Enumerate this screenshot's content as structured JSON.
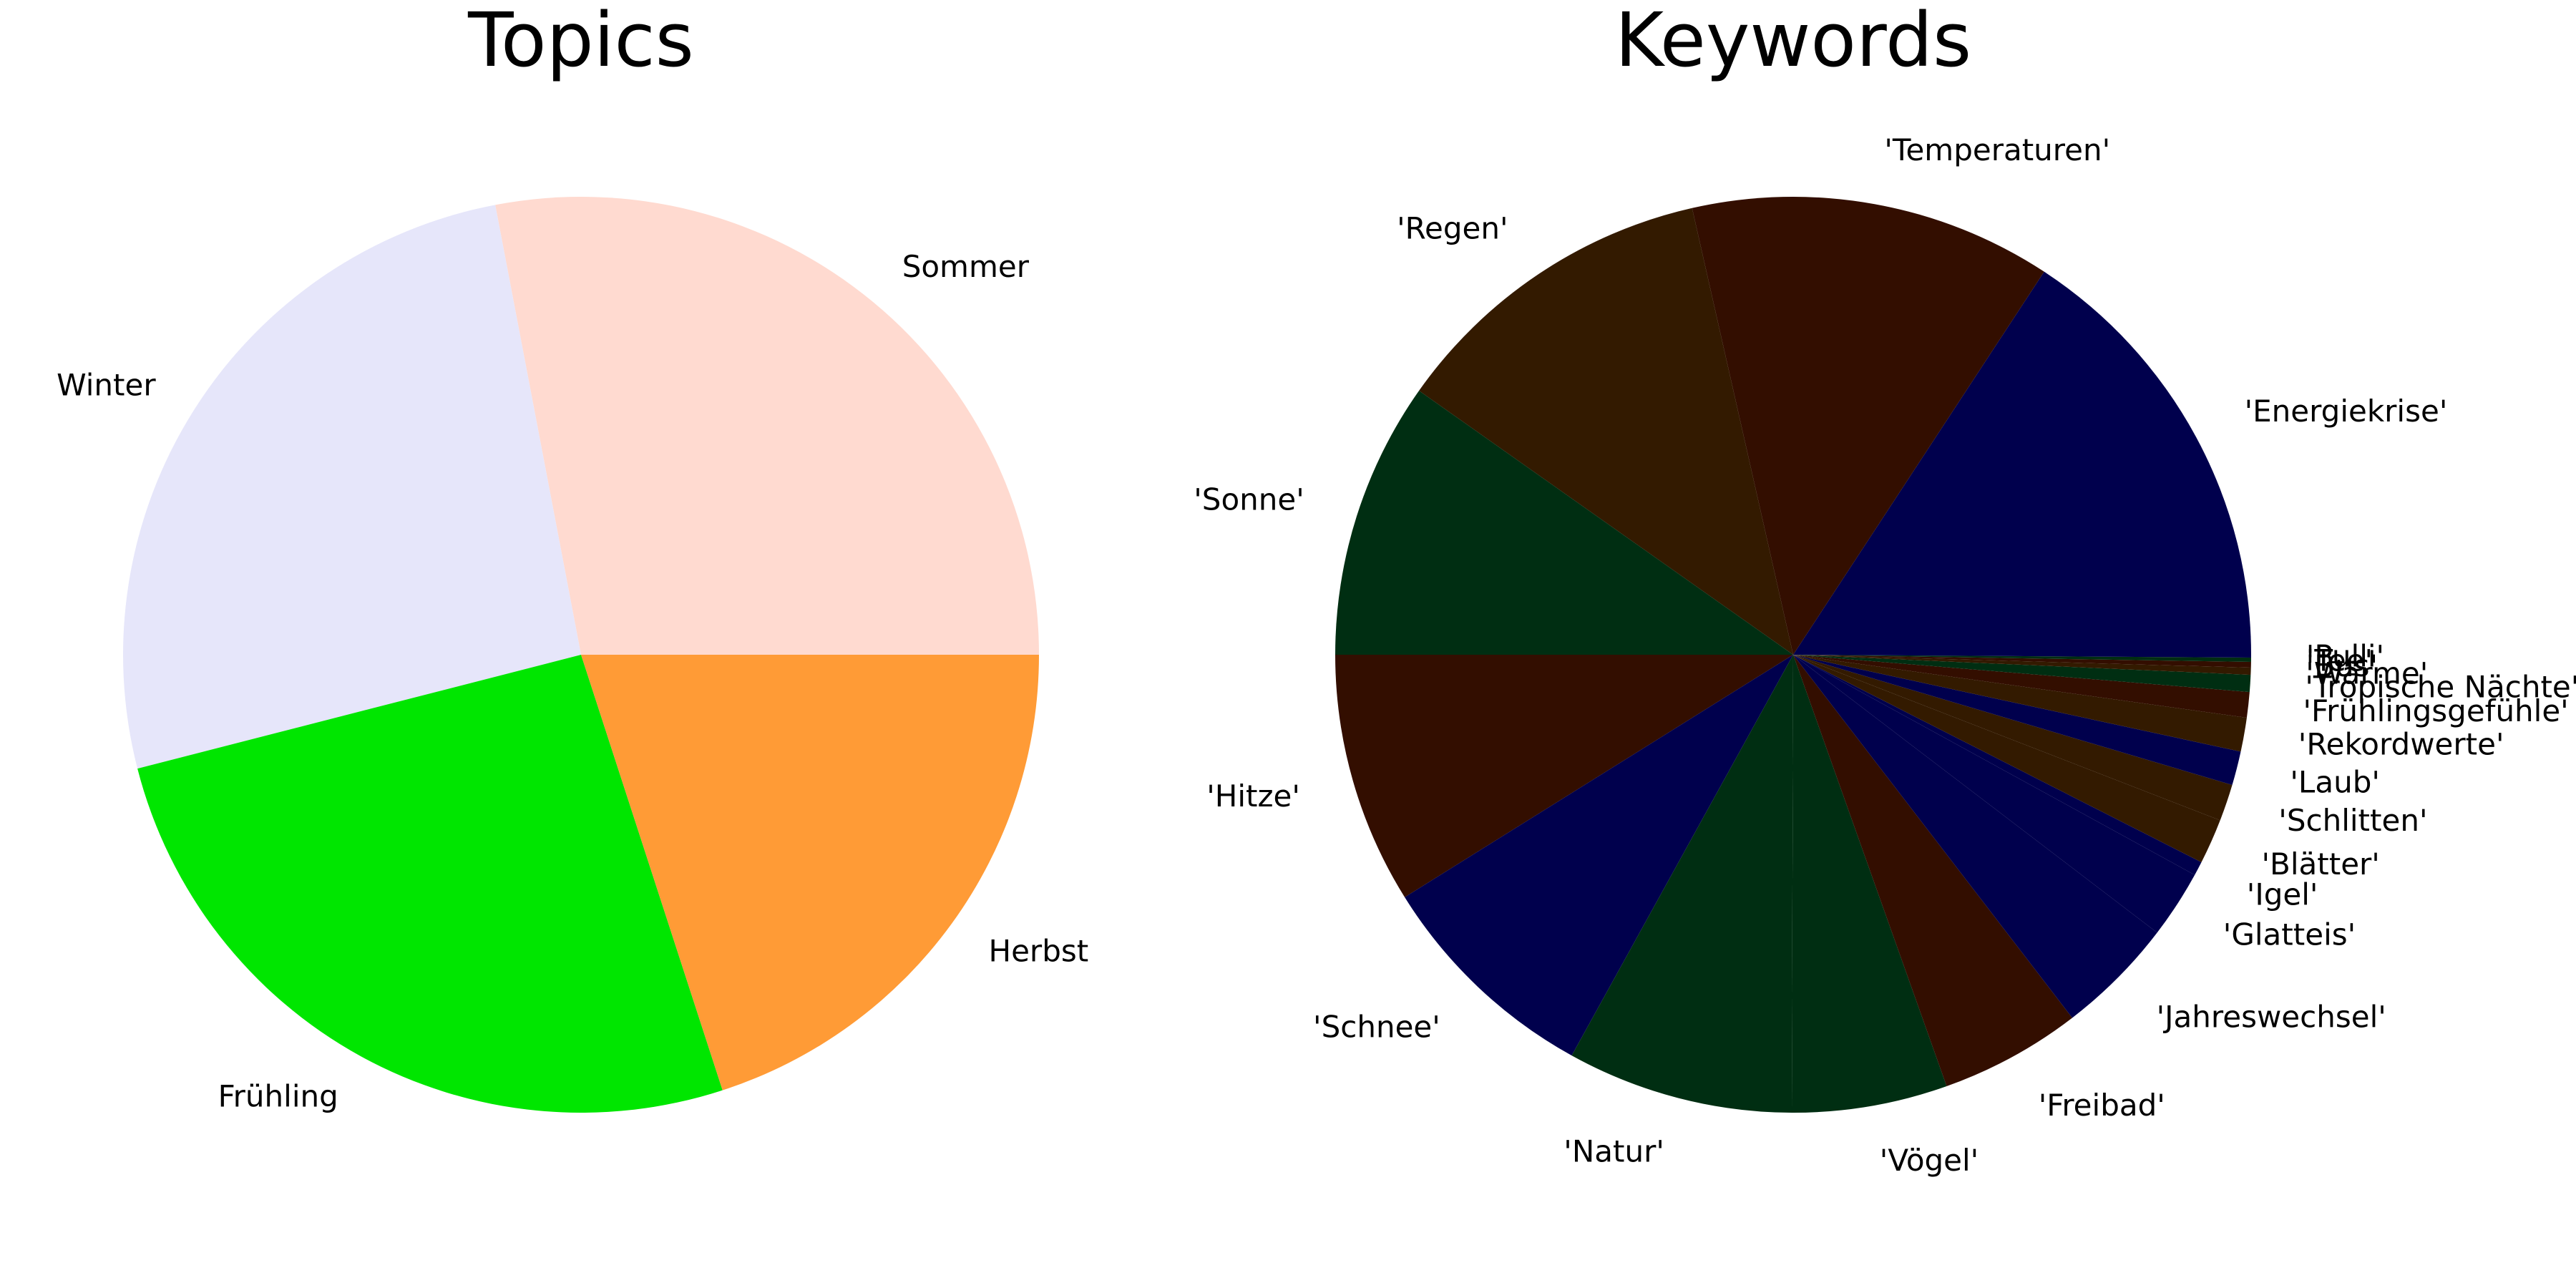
{
  "chart_data": [
    {
      "type": "pie",
      "title": "Topics",
      "start_angle": 0,
      "direction": "counterclockwise",
      "slices": [
        {
          "label": "Sommer",
          "value": 28,
          "color": "#FFDAD0"
        },
        {
          "label": "Winter",
          "value": 26,
          "color": "#E6E6FA"
        },
        {
          "label": "Frühling",
          "value": 26,
          "color": "#00E600"
        },
        {
          "label": "Herbst",
          "value": 20,
          "color": "#FF9B36"
        }
      ]
    },
    {
      "type": "pie",
      "title": "Keywords",
      "start_angle": 0,
      "direction": "counterclockwise",
      "slices": [
        {
          "label": "'Energiekrise'",
          "value": 15.8,
          "color": "#00004D"
        },
        {
          "label": "'Temperaturen'",
          "value": 12.8,
          "color": "#330E00"
        },
        {
          "label": "'Regen'",
          "value": 11.7,
          "color": "#331A00"
        },
        {
          "label": "'Sonne'",
          "value": 9.8,
          "color": "#002E12"
        },
        {
          "label": "'Hitze'",
          "value": 8.9,
          "color": "#330E00"
        },
        {
          "label": "'Schnee'",
          "value": 8.1,
          "color": "#00004D"
        },
        {
          "label": "'Natur'",
          "value": 8.0,
          "color": "#002E12"
        },
        {
          "label": "'Vögel'",
          "value": 5.5,
          "color": "#002E12"
        },
        {
          "label": "'Freibad'",
          "value": 5.0,
          "color": "#330E00"
        },
        {
          "label": "'Jahreswechsel'",
          "value": 4.2,
          "color": "#00004D"
        },
        {
          "label": "'Glatteis'",
          "value": 2.4,
          "color": "#00004D"
        },
        {
          "label": "'Igel'",
          "value": 0.5,
          "color": "#00004D"
        },
        {
          "label": "'Blätter'",
          "value": 1.6,
          "color": "#331A00"
        },
        {
          "label": "'Schlitten'",
          "value": 1.3,
          "color": "#331A00"
        },
        {
          "label": "'Laub'",
          "value": 1.2,
          "color": "#00004D"
        },
        {
          "label": "'Rekordwerte'",
          "value": 1.2,
          "color": "#331A00"
        },
        {
          "label": "'Frühlingsgefühle'",
          "value": 0.9,
          "color": "#330E00"
        },
        {
          "label": "'Tropische Nächte'",
          "value": 0.6,
          "color": "#002E12"
        },
        {
          "label": "'Wärme'",
          "value": 0.25,
          "color": "#331A00"
        },
        {
          "label": "'Bus'",
          "value": 0.2,
          "color": "#330E00"
        },
        {
          "label": "'Tee'",
          "value": 0.15,
          "color": "#002E12"
        },
        {
          "label": "'Pulli'",
          "value": 0.1,
          "color": "#00004D"
        }
      ]
    }
  ]
}
